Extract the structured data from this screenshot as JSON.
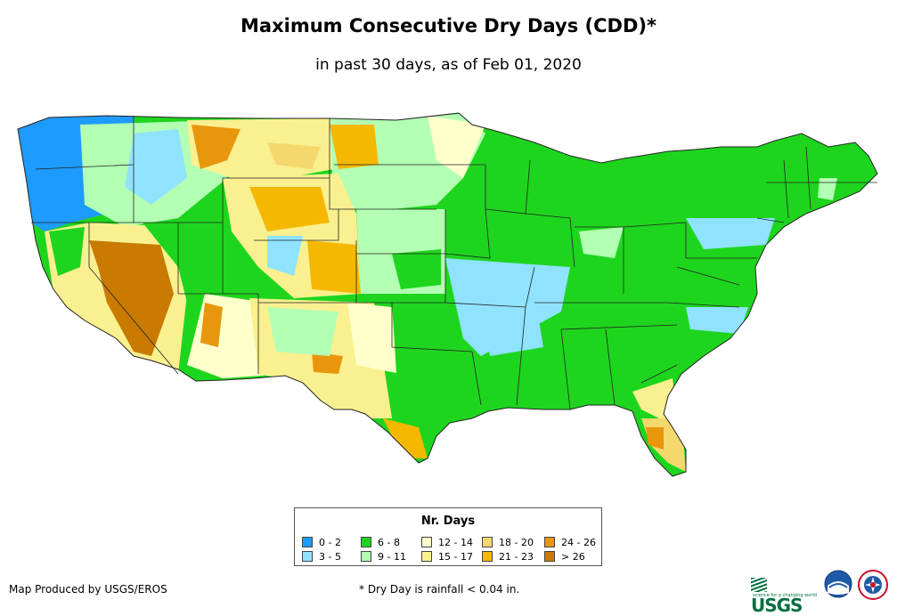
{
  "header": {
    "title": "Maximum Consecutive Dry Days (CDD)*",
    "subtitle": "in past 30 days, as of Feb 01, 2020"
  },
  "legend": {
    "title": "Nr. Days",
    "items": [
      {
        "label": "0 - 2",
        "color": "#1e9bff"
      },
      {
        "label": "3 - 5",
        "color": "#8fe3ff"
      },
      {
        "label": "6 - 8",
        "color": "#1ed51e"
      },
      {
        "label": "9 - 11",
        "color": "#b3ffb3"
      },
      {
        "label": "12 - 14",
        "color": "#ffffcc"
      },
      {
        "label": "15 - 17",
        "color": "#faf08f"
      },
      {
        "label": "18 - 20",
        "color": "#f5d76e"
      },
      {
        "label": "21 - 23",
        "color": "#f5b800"
      },
      {
        "label": "24 - 26",
        "color": "#e8960c"
      },
      {
        "label": "> 26",
        "color": "#c97a00"
      }
    ]
  },
  "footer": {
    "credit": "Map Produced by USGS/EROS",
    "note": "* Dry Day is rainfall < 0.04 in."
  },
  "logos": {
    "usgs": "USGS",
    "usgs_tagline": "science for a changing world",
    "noaa": "noaa-logo",
    "nws": "nws-logo"
  }
}
